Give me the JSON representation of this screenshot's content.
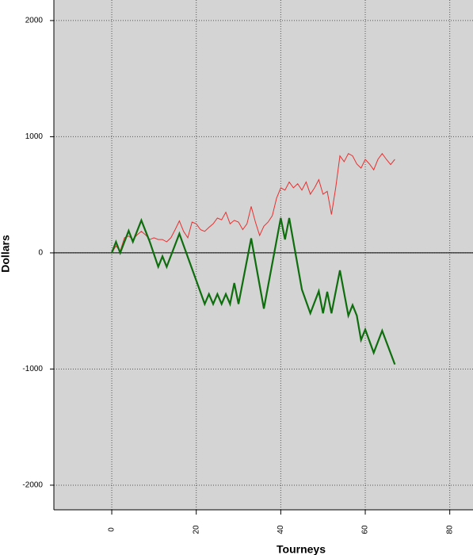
{
  "chart_data": {
    "type": "line",
    "x_label": "Tourneys",
    "y_label": "Dollars",
    "xlim": [
      -13.7,
      85.5
    ],
    "ylim": [
      -2212,
      2177
    ],
    "xticks": [
      0,
      20,
      40,
      60,
      80
    ],
    "yticks": [
      -2000,
      -1000,
      0,
      1000,
      2000
    ],
    "grid": true,
    "series": [
      {
        "color": "#e83030",
        "width": 1,
        "x": [
          0,
          1,
          2,
          3,
          4,
          5,
          6,
          7,
          8,
          9,
          10,
          11,
          12,
          13,
          14,
          15,
          16,
          17,
          18,
          19,
          20,
          21,
          22,
          23,
          24,
          25,
          26,
          27,
          28,
          29,
          30,
          31,
          32,
          33,
          34,
          35,
          36,
          37,
          38,
          39,
          40,
          41,
          42,
          43,
          44,
          45,
          46,
          47,
          48,
          49,
          50,
          51,
          52,
          53,
          54,
          55,
          56,
          57,
          58,
          59,
          60,
          61,
          62,
          63,
          64,
          65,
          66,
          67
        ],
        "values": [
          0,
          60,
          15,
          130,
          145,
          115,
          155,
          185,
          155,
          115,
          130,
          115,
          115,
          95,
          130,
          200,
          275,
          185,
          130,
          265,
          250,
          200,
          185,
          220,
          250,
          300,
          285,
          350,
          250,
          280,
          265,
          200,
          250,
          400,
          265,
          150,
          230,
          265,
          320,
          470,
          560,
          540,
          610,
          560,
          595,
          540,
          610,
          505,
          560,
          630,
          505,
          530,
          330,
          560,
          835,
          785,
          855,
          835,
          765,
          730,
          805,
          765,
          715,
          805,
          855,
          805,
          760,
          805
        ]
      },
      {
        "color": "#0e6e0e",
        "width": 2.2,
        "x": [
          0,
          1,
          2,
          4,
          5,
          7,
          9,
          11,
          12,
          13,
          16,
          22,
          23,
          24,
          25,
          26,
          27,
          28,
          29,
          30,
          33,
          36,
          40,
          41,
          42,
          45,
          47,
          49,
          50,
          51,
          52,
          54,
          56,
          57,
          58,
          59,
          60,
          62,
          64,
          67
        ],
        "values": [
          0,
          95,
          0,
          190,
          95,
          280,
          95,
          -120,
          -30,
          -120,
          165,
          -440,
          -355,
          -440,
          -355,
          -440,
          -355,
          -440,
          -260,
          -440,
          125,
          -480,
          300,
          115,
          300,
          -315,
          -520,
          -330,
          -520,
          -335,
          -520,
          -150,
          -540,
          -450,
          -540,
          -750,
          -660,
          -860,
          -670,
          -960
        ]
      }
    ]
  }
}
